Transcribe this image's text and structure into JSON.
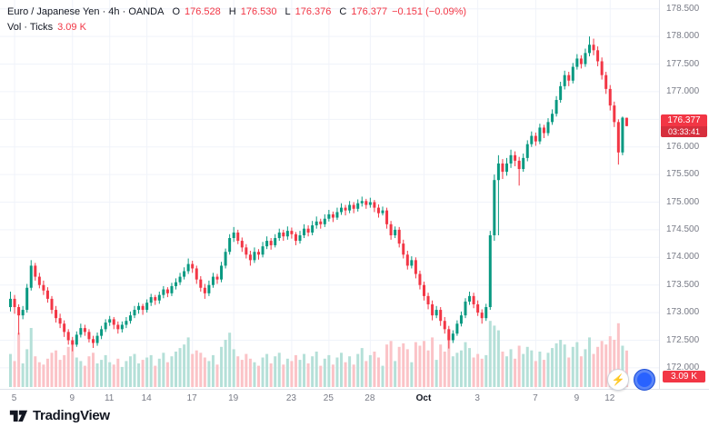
{
  "header": {
    "title": "Euro / Japanese Yen · 4h · OANDA",
    "ohlc": {
      "o_label": "O",
      "o": "176.528",
      "h_label": "H",
      "h": "176.530",
      "l_label": "L",
      "l": "176.376",
      "c_label": "C",
      "c": "176.377",
      "change": "−0.151 (−0.09%)"
    },
    "vol_label": "Vol · Ticks",
    "vol_value": "3.09 K"
  },
  "price_axis": {
    "labels": [
      "178.500",
      "178.000",
      "177.500",
      "177.000",
      "176.500",
      "176.000",
      "175.500",
      "175.000",
      "174.500",
      "174.000",
      "173.500",
      "173.000",
      "172.500",
      "172.000"
    ],
    "price_badge": {
      "price": "176.377",
      "countdown": "03:33:41"
    }
  },
  "volume_badge": "3.09 K",
  "logo": {
    "text": "TradingView"
  },
  "buttons": {
    "lightning": "⚡"
  },
  "colors": {
    "up": "#089981",
    "down": "#f23645",
    "vol_up": "#b5e0d8",
    "vol_down": "#fbc3c7",
    "grid": "#f0f3fa",
    "axis_text": "#787b86",
    "text": "#131722",
    "accent_red": "#f23645",
    "badge_blue": "#2962ff"
  },
  "chart_data": {
    "type": "candlestick",
    "title": "Euro / Japanese Yen, 4h, OANDA",
    "interval": "4h",
    "ylim": [
      171.62,
      178.66
    ],
    "grid": true,
    "volume_units": "K ticks",
    "x_ticks": [
      {
        "label": "5",
        "index": 1
      },
      {
        "label": "9",
        "index": 15
      },
      {
        "label": "11",
        "index": 24
      },
      {
        "label": "14",
        "index": 33
      },
      {
        "label": "17",
        "index": 44
      },
      {
        "label": "19",
        "index": 54
      },
      {
        "label": "23",
        "index": 68
      },
      {
        "label": "25",
        "index": 77
      },
      {
        "label": "28",
        "index": 87
      },
      {
        "label": "Oct",
        "index": 100
      },
      {
        "label": "3",
        "index": 113
      },
      {
        "label": "7",
        "index": 127
      },
      {
        "label": "9",
        "index": 137
      },
      {
        "label": "12",
        "index": 145
      }
    ],
    "candles_format": [
      "open",
      "high",
      "low",
      "close",
      "volume_k"
    ],
    "candles": [
      [
        173.1,
        173.38,
        173.02,
        173.25,
        2.8
      ],
      [
        173.25,
        173.32,
        172.98,
        173.1,
        2.2
      ],
      [
        173.1,
        173.15,
        172.6,
        172.95,
        4.6
      ],
      [
        172.95,
        173.12,
        172.88,
        173.05,
        2.0
      ],
      [
        173.05,
        173.52,
        173.0,
        173.45,
        3.2
      ],
      [
        173.45,
        173.95,
        173.4,
        173.85,
        5.0
      ],
      [
        173.85,
        173.9,
        173.58,
        173.65,
        2.6
      ],
      [
        173.65,
        173.72,
        173.44,
        173.5,
        2.1
      ],
      [
        173.5,
        173.58,
        173.32,
        173.4,
        1.9
      ],
      [
        173.4,
        173.46,
        173.18,
        173.25,
        2.4
      ],
      [
        173.25,
        173.3,
        172.98,
        173.05,
        2.9
      ],
      [
        173.05,
        173.12,
        172.82,
        172.9,
        3.1
      ],
      [
        172.9,
        172.98,
        172.72,
        172.8,
        2.3
      ],
      [
        172.8,
        172.86,
        172.56,
        172.65,
        2.7
      ],
      [
        172.65,
        172.7,
        172.42,
        172.5,
        3.4
      ],
      [
        172.5,
        172.56,
        172.3,
        172.42,
        3.8
      ],
      [
        172.42,
        172.66,
        172.38,
        172.6,
        2.5
      ],
      [
        172.6,
        172.8,
        172.55,
        172.72,
        2.2
      ],
      [
        172.72,
        172.78,
        172.58,
        172.65,
        1.8
      ],
      [
        172.65,
        172.7,
        172.46,
        172.52,
        2.6
      ],
      [
        172.52,
        172.58,
        172.36,
        172.45,
        2.9
      ],
      [
        172.45,
        172.64,
        172.4,
        172.58,
        2.0
      ],
      [
        172.58,
        172.76,
        172.52,
        172.7,
        2.3
      ],
      [
        172.7,
        172.88,
        172.65,
        172.82,
        2.7
      ],
      [
        172.82,
        172.94,
        172.76,
        172.88,
        2.1
      ],
      [
        172.88,
        172.92,
        172.7,
        172.78,
        1.9
      ],
      [
        172.78,
        172.84,
        172.62,
        172.7,
        2.4
      ],
      [
        172.7,
        172.84,
        172.64,
        172.78,
        1.7
      ],
      [
        172.78,
        172.92,
        172.72,
        172.85,
        2.2
      ],
      [
        172.85,
        173.02,
        172.8,
        172.95,
        2.6
      ],
      [
        172.95,
        173.12,
        172.9,
        173.05,
        2.8
      ],
      [
        173.05,
        173.18,
        172.98,
        173.12,
        2.0
      ],
      [
        173.12,
        173.16,
        172.96,
        173.05,
        2.3
      ],
      [
        173.05,
        173.24,
        173.0,
        173.18,
        2.5
      ],
      [
        173.18,
        173.34,
        173.12,
        173.28,
        2.7
      ],
      [
        173.28,
        173.32,
        173.14,
        173.22,
        1.8
      ],
      [
        173.22,
        173.38,
        173.16,
        173.32,
        2.4
      ],
      [
        173.32,
        173.48,
        173.26,
        173.42,
        2.9
      ],
      [
        173.42,
        173.46,
        173.28,
        173.35,
        2.1
      ],
      [
        173.35,
        173.54,
        173.3,
        173.48,
        2.6
      ],
      [
        173.48,
        173.62,
        173.42,
        173.55,
        3.0
      ],
      [
        173.55,
        173.72,
        173.5,
        173.65,
        3.3
      ],
      [
        173.65,
        173.82,
        173.6,
        173.75,
        3.6
      ],
      [
        173.75,
        173.98,
        173.7,
        173.88,
        4.2
      ],
      [
        173.88,
        173.94,
        173.72,
        173.8,
        2.8
      ],
      [
        173.8,
        173.85,
        173.52,
        173.6,
        3.1
      ],
      [
        173.6,
        173.66,
        173.38,
        173.45,
        2.9
      ],
      [
        173.45,
        173.52,
        173.25,
        173.35,
        2.5
      ],
      [
        173.35,
        173.58,
        173.3,
        173.5,
        2.2
      ],
      [
        173.5,
        173.72,
        173.45,
        173.65,
        2.7
      ],
      [
        173.65,
        173.7,
        173.52,
        173.6,
        1.9
      ],
      [
        173.6,
        173.92,
        173.55,
        173.85,
        3.4
      ],
      [
        173.85,
        174.16,
        173.8,
        174.1,
        4.0
      ],
      [
        174.1,
        174.42,
        174.05,
        174.35,
        4.6
      ],
      [
        174.35,
        174.55,
        174.28,
        174.45,
        3.2
      ],
      [
        174.45,
        174.5,
        174.24,
        174.3,
        2.6
      ],
      [
        174.3,
        174.36,
        174.1,
        174.18,
        2.3
      ],
      [
        174.18,
        174.24,
        173.98,
        174.05,
        2.8
      ],
      [
        174.05,
        174.12,
        173.85,
        173.95,
        2.4
      ],
      [
        173.95,
        174.18,
        173.9,
        174.1,
        2.1
      ],
      [
        174.1,
        174.15,
        173.96,
        174.05,
        1.8
      ],
      [
        174.05,
        174.28,
        174.0,
        174.2,
        2.5
      ],
      [
        174.2,
        174.38,
        174.15,
        174.3,
        2.8
      ],
      [
        174.3,
        174.35,
        174.14,
        174.22,
        2.0
      ],
      [
        174.22,
        174.42,
        174.18,
        174.35,
        2.6
      ],
      [
        174.35,
        174.52,
        174.3,
        174.45,
        2.9
      ],
      [
        174.45,
        174.5,
        174.3,
        174.38,
        1.9
      ],
      [
        174.38,
        174.56,
        174.32,
        174.48,
        2.4
      ],
      [
        174.48,
        174.54,
        174.34,
        174.42,
        2.2
      ],
      [
        174.42,
        174.46,
        174.22,
        174.3,
        2.7
      ],
      [
        174.3,
        174.48,
        174.25,
        174.4,
        2.3
      ],
      [
        174.4,
        174.6,
        174.35,
        174.52,
        2.8
      ],
      [
        174.52,
        174.58,
        174.38,
        174.45,
        2.0
      ],
      [
        174.45,
        174.66,
        174.4,
        174.58,
        2.6
      ],
      [
        174.58,
        174.74,
        174.52,
        174.65,
        3.0
      ],
      [
        174.65,
        174.7,
        174.52,
        174.6,
        1.8
      ],
      [
        174.6,
        174.78,
        174.55,
        174.7,
        2.4
      ],
      [
        174.7,
        174.86,
        174.65,
        174.78,
        2.7
      ],
      [
        174.78,
        174.83,
        174.64,
        174.72,
        1.9
      ],
      [
        174.72,
        174.9,
        174.68,
        174.82,
        2.5
      ],
      [
        174.82,
        174.98,
        174.77,
        174.9,
        2.9
      ],
      [
        174.9,
        174.95,
        174.76,
        174.85,
        2.1
      ],
      [
        174.85,
        175.02,
        174.8,
        174.95,
        2.6
      ],
      [
        174.95,
        175.0,
        174.8,
        174.88,
        1.9
      ],
      [
        174.88,
        175.05,
        174.83,
        174.98,
        2.8
      ],
      [
        174.98,
        175.1,
        174.92,
        175.02,
        3.3
      ],
      [
        175.02,
        175.06,
        174.88,
        174.95,
        2.2
      ],
      [
        174.95,
        175.08,
        174.9,
        175.0,
        2.7
      ],
      [
        175.0,
        175.04,
        174.82,
        174.9,
        3.0
      ],
      [
        174.9,
        174.96,
        174.72,
        174.8,
        2.5
      ],
      [
        174.8,
        174.92,
        174.76,
        174.85,
        1.8
      ],
      [
        174.85,
        174.9,
        174.52,
        174.6,
        3.6
      ],
      [
        174.6,
        174.66,
        174.32,
        174.4,
        3.9
      ],
      [
        174.4,
        174.56,
        174.35,
        174.5,
        2.2
      ],
      [
        174.5,
        174.55,
        174.18,
        174.25,
        3.4
      ],
      [
        174.25,
        174.32,
        173.98,
        174.05,
        3.7
      ],
      [
        174.05,
        174.12,
        173.78,
        173.85,
        3.2
      ],
      [
        173.85,
        174.02,
        173.8,
        173.95,
        2.1
      ],
      [
        173.95,
        174.0,
        173.62,
        173.7,
        3.8
      ],
      [
        173.7,
        173.76,
        173.42,
        173.5,
        3.5
      ],
      [
        173.5,
        173.56,
        173.22,
        173.3,
        3.9
      ],
      [
        173.3,
        173.36,
        173.06,
        173.15,
        3.1
      ],
      [
        173.15,
        173.22,
        172.86,
        172.95,
        4.2
      ],
      [
        172.95,
        173.12,
        172.9,
        173.05,
        2.3
      ],
      [
        173.05,
        173.1,
        172.76,
        172.85,
        3.6
      ],
      [
        172.85,
        172.92,
        172.62,
        172.7,
        3.0
      ],
      [
        172.7,
        172.76,
        172.35,
        172.5,
        4.4
      ],
      [
        172.5,
        172.68,
        172.45,
        172.62,
        2.6
      ],
      [
        172.62,
        172.86,
        172.58,
        172.8,
        2.9
      ],
      [
        172.8,
        173.02,
        172.75,
        172.95,
        3.1
      ],
      [
        172.95,
        173.26,
        172.9,
        173.2,
        3.8
      ],
      [
        173.2,
        173.38,
        173.14,
        173.3,
        3.3
      ],
      [
        173.3,
        173.36,
        173.08,
        173.15,
        2.5
      ],
      [
        173.15,
        173.22,
        172.94,
        173.0,
        2.8
      ],
      [
        173.0,
        173.06,
        172.8,
        172.9,
        2.4
      ],
      [
        172.9,
        173.16,
        172.85,
        173.1,
        2.7
      ],
      [
        173.1,
        174.48,
        173.05,
        174.4,
        5.6
      ],
      [
        174.4,
        175.5,
        174.3,
        175.4,
        5.2
      ],
      [
        175.4,
        175.85,
        174.4,
        175.7,
        4.8
      ],
      [
        175.7,
        175.78,
        175.42,
        175.55,
        3.0
      ],
      [
        175.55,
        175.8,
        175.48,
        175.7,
        2.6
      ],
      [
        175.7,
        175.95,
        175.62,
        175.85,
        3.2
      ],
      [
        175.85,
        175.92,
        175.65,
        175.75,
        2.4
      ],
      [
        175.75,
        175.82,
        175.3,
        175.6,
        3.5
      ],
      [
        175.6,
        175.88,
        175.55,
        175.8,
        2.8
      ],
      [
        175.8,
        176.12,
        175.74,
        176.05,
        3.4
      ],
      [
        176.05,
        176.28,
        176.0,
        176.2,
        3.1
      ],
      [
        176.2,
        176.26,
        176.02,
        176.1,
        2.2
      ],
      [
        176.1,
        176.42,
        176.05,
        176.35,
        3.0
      ],
      [
        176.35,
        176.4,
        176.16,
        176.25,
        2.3
      ],
      [
        176.25,
        176.52,
        176.2,
        176.45,
        2.9
      ],
      [
        176.45,
        176.68,
        176.4,
        176.6,
        3.3
      ],
      [
        176.6,
        176.92,
        176.55,
        176.85,
        3.7
      ],
      [
        176.85,
        177.18,
        176.8,
        177.1,
        4.0
      ],
      [
        177.1,
        177.38,
        177.04,
        177.3,
        3.6
      ],
      [
        177.3,
        177.36,
        177.1,
        177.2,
        2.5
      ],
      [
        177.2,
        177.52,
        177.15,
        177.45,
        3.4
      ],
      [
        177.45,
        177.68,
        177.4,
        177.6,
        3.8
      ],
      [
        177.6,
        177.66,
        177.42,
        177.5,
        2.6
      ],
      [
        177.5,
        177.78,
        177.45,
        177.7,
        3.2
      ],
      [
        177.7,
        178.0,
        177.64,
        177.85,
        4.2
      ],
      [
        177.85,
        177.96,
        177.66,
        177.75,
        2.8
      ],
      [
        177.75,
        177.82,
        177.46,
        177.55,
        3.4
      ],
      [
        177.55,
        177.62,
        177.22,
        177.3,
        3.9
      ],
      [
        177.3,
        177.36,
        176.96,
        177.05,
        3.6
      ],
      [
        177.05,
        177.12,
        176.66,
        176.75,
        4.3
      ],
      [
        176.75,
        176.82,
        176.36,
        176.45,
        4.0
      ],
      [
        176.45,
        176.5,
        175.68,
        175.9,
        5.4
      ],
      [
        175.9,
        176.55,
        175.85,
        176.53,
        3.5
      ],
      [
        176.528,
        176.53,
        176.376,
        176.377,
        3.09
      ]
    ]
  }
}
